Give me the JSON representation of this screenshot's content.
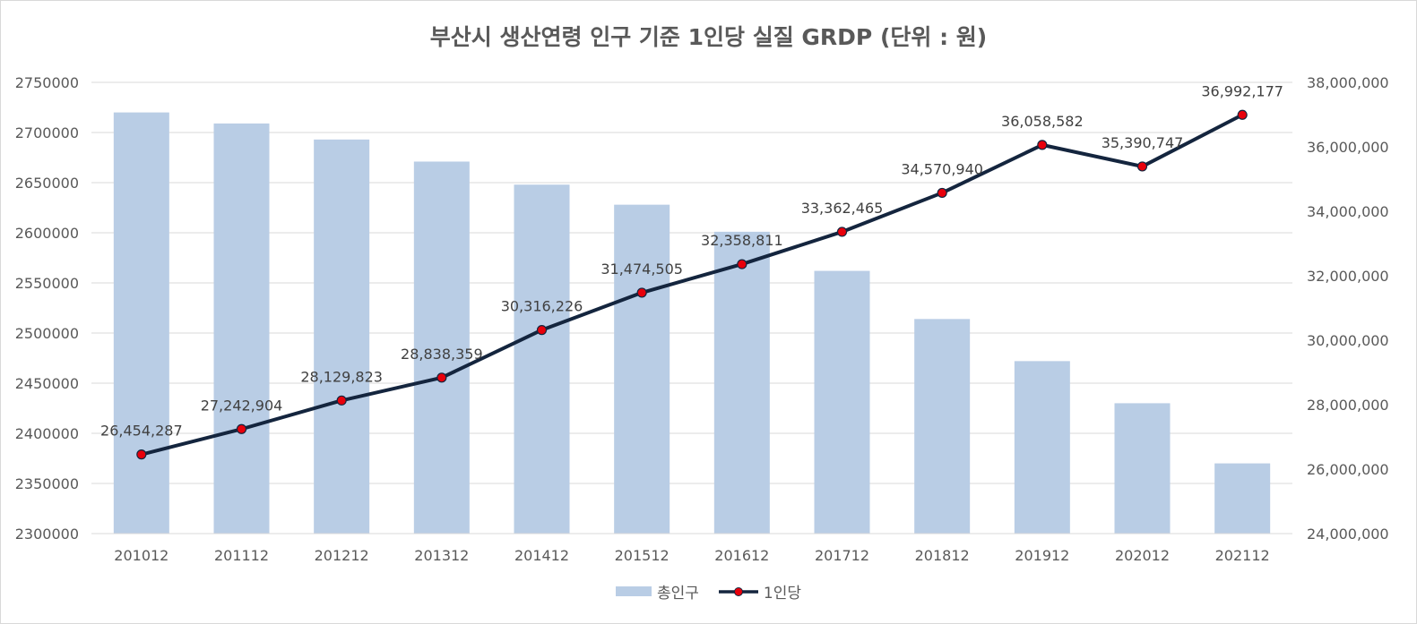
{
  "chart_data": {
    "type": "bar+line",
    "title": "부산시 생산연령 인구 기준 1인당 실질 GRDP (단위 : 원)",
    "categories": [
      "201012",
      "201112",
      "201212",
      "201312",
      "201412",
      "201512",
      "201612",
      "201712",
      "201812",
      "201912",
      "202012",
      "202112"
    ],
    "series": [
      {
        "name": "총인구",
        "type": "bar",
        "axis": "left",
        "values": [
          2720000,
          2709000,
          2693000,
          2671000,
          2648000,
          2628000,
          2601000,
          2562000,
          2514000,
          2472000,
          2430000,
          2370000
        ]
      },
      {
        "name": "1인당",
        "type": "line",
        "axis": "right",
        "values": [
          26454287,
          27242904,
          28129823,
          28838359,
          30316226,
          31474505,
          32358811,
          33362465,
          34570940,
          36058582,
          35390747,
          36992177
        ],
        "labels": [
          "26,454,287",
          "27,242,904",
          "28,129,823",
          "28,838,359",
          "30,316,226",
          "31,474,505",
          "32,358,811",
          "33,362,465",
          "34,570,940",
          "36,058,582",
          "35,390,747",
          "36,992,177"
        ]
      }
    ],
    "y_left": {
      "ylim": [
        2300000,
        2750000
      ],
      "ticks": [
        "2300000",
        "2350000",
        "2400000",
        "2450000",
        "2500000",
        "2550000",
        "2600000",
        "2650000",
        "2700000",
        "2750000"
      ]
    },
    "y_right": {
      "ylim": [
        24000000,
        38000000
      ],
      "ticks": [
        "24,000,000",
        "26,000,000",
        "28,000,000",
        "30,000,000",
        "32,000,000",
        "34,000,000",
        "36,000,000",
        "38,000,000"
      ]
    },
    "grid": true,
    "legend_position": "bottom",
    "colors": {
      "bar": "#b9cde5",
      "line": "#14253e",
      "marker": "#e8000b",
      "grid": "#d9d9d9",
      "text": "#595959"
    }
  }
}
